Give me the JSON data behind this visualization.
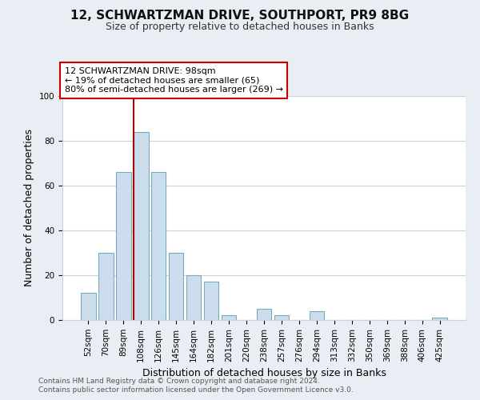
{
  "title": "12, SCHWARTZMAN DRIVE, SOUTHPORT, PR9 8BG",
  "subtitle": "Size of property relative to detached houses in Banks",
  "xlabel": "Distribution of detached houses by size in Banks",
  "ylabel": "Number of detached properties",
  "bar_labels": [
    "52sqm",
    "70sqm",
    "89sqm",
    "108sqm",
    "126sqm",
    "145sqm",
    "164sqm",
    "182sqm",
    "201sqm",
    "220sqm",
    "238sqm",
    "257sqm",
    "276sqm",
    "294sqm",
    "313sqm",
    "332sqm",
    "350sqm",
    "369sqm",
    "388sqm",
    "406sqm",
    "425sqm"
  ],
  "bar_heights": [
    12,
    30,
    66,
    84,
    66,
    30,
    20,
    17,
    2,
    0,
    5,
    2,
    0,
    4,
    0,
    0,
    0,
    0,
    0,
    0,
    1
  ],
  "bar_color": "#ccdded",
  "bar_edge_color": "#7aaabb",
  "annotation_line_color": "#aa0000",
  "annotation_line_index": 2.575,
  "ylim": [
    0,
    100
  ],
  "yticks": [
    0,
    20,
    40,
    60,
    80,
    100
  ],
  "annotation_text_line1": "12 SCHWARTZMAN DRIVE: 98sqm",
  "annotation_text_line2": "← 19% of detached houses are smaller (65)",
  "annotation_text_line3": "80% of semi-detached houses are larger (269) →",
  "footer_line1": "Contains HM Land Registry data © Crown copyright and database right 2024.",
  "footer_line2": "Contains public sector information licensed under the Open Government Licence v3.0.",
  "background_color": "#e8eef4",
  "plot_background_color": "#ffffff",
  "grid_color": "#c8d4dc",
  "box_edge_color": "#cc0000",
  "title_fontsize": 11,
  "subtitle_fontsize": 9,
  "axis_label_fontsize": 9,
  "tick_fontsize": 7.5,
  "annotation_fontsize": 8,
  "footer_fontsize": 6.5
}
